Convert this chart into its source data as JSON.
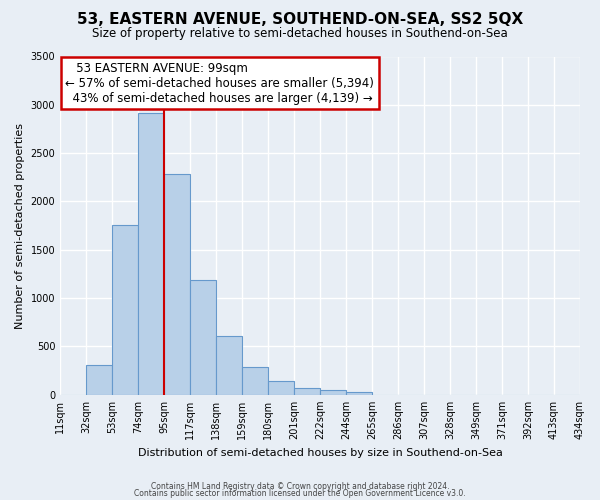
{
  "title": "53, EASTERN AVENUE, SOUTHEND-ON-SEA, SS2 5QX",
  "subtitle": "Size of property relative to semi-detached houses in Southend-on-Sea",
  "xlabel": "Distribution of semi-detached houses by size in Southend-on-Sea",
  "ylabel": "Number of semi-detached properties",
  "bin_labels": [
    "11sqm",
    "32sqm",
    "53sqm",
    "74sqm",
    "95sqm",
    "117sqm",
    "138sqm",
    "159sqm",
    "180sqm",
    "201sqm",
    "222sqm",
    "244sqm",
    "265sqm",
    "286sqm",
    "307sqm",
    "328sqm",
    "349sqm",
    "371sqm",
    "392sqm",
    "413sqm",
    "434sqm"
  ],
  "bar_values": [
    0,
    310,
    1760,
    2920,
    2280,
    1185,
    610,
    290,
    145,
    70,
    50,
    30,
    0,
    0,
    0,
    0,
    0,
    0,
    0,
    0
  ],
  "bar_color": "#b8d0e8",
  "bar_edge_color": "#6699cc",
  "vline_index": 4,
  "vline_color": "#cc0000",
  "annotation_title": "53 EASTERN AVENUE: 99sqm",
  "annotation_line1": "← 57% of semi-detached houses are smaller (5,394)",
  "annotation_line2": "43% of semi-detached houses are larger (4,139) →",
  "annotation_box_facecolor": "#ffffff",
  "annotation_box_edgecolor": "#cc0000",
  "ylim": [
    0,
    3500
  ],
  "yticks": [
    0,
    500,
    1000,
    1500,
    2000,
    2500,
    3000,
    3500
  ],
  "footer1": "Contains HM Land Registry data © Crown copyright and database right 2024.",
  "footer2": "Contains public sector information licensed under the Open Government Licence v3.0.",
  "bg_color": "#e8eef5",
  "plot_bg_color": "#e8eef5",
  "grid_color": "#ffffff",
  "title_fontsize": 11,
  "subtitle_fontsize": 8.5,
  "ylabel_fontsize": 8,
  "xlabel_fontsize": 8,
  "tick_fontsize": 7,
  "annotation_fontsize": 8.5
}
